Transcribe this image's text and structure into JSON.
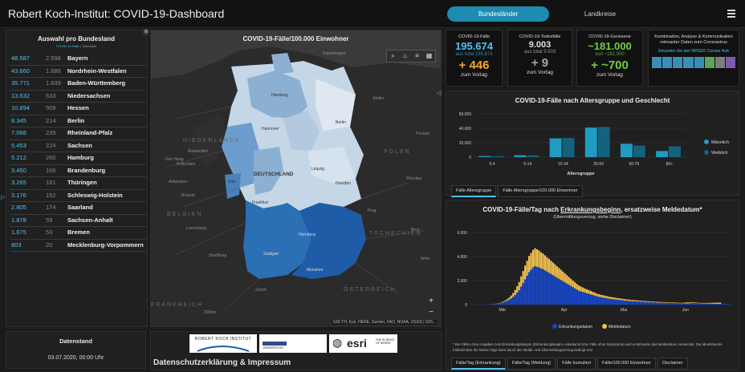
{
  "header": {
    "title": "Robert Koch-Institut: COVID-19-Dashboard",
    "tab_active": "Bundesländer",
    "tab_inactive": "Landkreise"
  },
  "state_list": {
    "title": "Auswahl pro Bundesland",
    "subtitle_cases": "COVID-19-Fälle",
    "subtitle_deaths": "Todesfälle",
    "rows": [
      {
        "cases": "48.587",
        "deaths": "2.598",
        "state": "Bayern"
      },
      {
        "cases": "43.660",
        "deaths": "1.686",
        "state": "Nordrhein-Westfalen"
      },
      {
        "cases": "35.771",
        "deaths": "1.839",
        "state": "Baden-Württemberg"
      },
      {
        "cases": "13.632",
        "deaths": "633",
        "state": "Niedersachsen"
      },
      {
        "cases": "10.894",
        "deaths": "509",
        "state": "Hessen"
      },
      {
        "cases": "8.345",
        "deaths": "214",
        "state": "Berlin"
      },
      {
        "cases": "7.068",
        "deaths": "235",
        "state": "Rheinland-Pfalz"
      },
      {
        "cases": "5.453",
        "deaths": "224",
        "state": "Sachsen"
      },
      {
        "cases": "5.212",
        "deaths": "260",
        "state": "Hamburg"
      },
      {
        "cases": "3.450",
        "deaths": "166",
        "state": "Brandenburg"
      },
      {
        "cases": "3.265",
        "deaths": "181",
        "state": "Thüringen"
      },
      {
        "cases": "3.176",
        "deaths": "152",
        "state": "Schleswig-Holstein"
      },
      {
        "cases": "2.805",
        "deaths": "174",
        "state": "Saarland"
      },
      {
        "cases": "1.878",
        "deaths": "59",
        "state": "Sachsen-Anhalt"
      },
      {
        "cases": "1.675",
        "deaths": "53",
        "state": "Bremen"
      },
      {
        "cases": "803",
        "deaths": "20",
        "state": "Mecklenburg-Vorpommern"
      }
    ]
  },
  "map": {
    "title": "COVID-19-Fälle/100.000 Einwohner",
    "attribution": "GDI-TH, Esri, HERE, Garmin, FAO, NOAA, USGS | GDI...",
    "country_label": "DEUTSCHLAND",
    "scale": "200km",
    "cities": {
      "kopenhagen": "Kopenhagen",
      "hamburg": "Hamburg",
      "berlin": "Berlin",
      "hannover": "Hannover",
      "amsterdam": "Amsterdam",
      "rotterdam": "Rotterdam",
      "den_haag": "Den Haag",
      "antwerpen": "Antwerpen",
      "bruessel": "Brüssel",
      "koeln": "Köln",
      "leipzig": "Leipzig",
      "dresden": "Dresden",
      "frankfurt": "Frankfurt",
      "stuttgart": "Stuttgart",
      "nuernberg": "Nürnberg",
      "muenchen": "München",
      "zuerich": "Zürich",
      "prag": "Prag",
      "wien": "Wien",
      "stettin": "Stettin",
      "poznan": "Poznań",
      "wroclaw": "Wrocław",
      "brno": "Brno",
      "luxemburg": "Luxemburg",
      "strassburg": "Straßburg"
    },
    "regions": {
      "niederlande": "NIEDERLANDE",
      "belgien": "BELGIEN",
      "polen": "POLEN",
      "tschechien": "TSCHECHIEN",
      "frankreich": "FRANKREICH",
      "oesterreich": "ÖSTERREICH"
    }
  },
  "stats": {
    "cases": {
      "label": "COVID-19-Fälle",
      "value": "195.674",
      "total": "aus total 195.674",
      "delta": "+ 446",
      "delta_label": "zum Vortag"
    },
    "deaths": {
      "label": "COVID-19-Todesfälle",
      "value": "9.003",
      "total": "aus total 9.003",
      "delta": "+ 9",
      "delta_label": "zum Vortag"
    },
    "recovered": {
      "label": "COVID-19-Genesene",
      "value": "~181.000",
      "total": "von ~181.000",
      "delta": "+ ~700",
      "delta_label": "zum Vortag"
    }
  },
  "info": {
    "text": "Kombination, Analyse & Kommunikation relevanter Daten zum Coronavirus",
    "link": "Erkunden Sie den NPGEO Corona Hub"
  },
  "age_panel": {
    "tabs": [
      "Fälle Altersgruppe",
      "Fälle Altersgruppe/100.000 Einwohner"
    ]
  },
  "daily_panel": {
    "subtitle": "(Übermittlungsverzug, siehe Disclaimer)",
    "note": "* Bei Fällen ohne Angaben zum Erkrankungsbeginn (Erkrankungsbeginn unbekannt bzw. Fälle ohne Symptome) wird ersatzweise das Meldedatum verwendet. Die abnehmende Fallzahl über die letzten Tage kann durch den Melde- und Übermittlungsverzug bedingt sein.",
    "tabs": [
      "Fälle/Tag (Erkrankung)",
      "Fälle/Tag (Meldung)",
      "Fälle kumuliert",
      "Fälle/100.000 Einwohner",
      "Disclaimer"
    ]
  },
  "datenstand": {
    "label": "Datenstand",
    "value": "03.07.2020, 00:00 Uhr"
  },
  "footer": {
    "imprint": "Datenschutzerklärung & Impressum",
    "logo_rki": "ROBERT KOCH INSTITUT",
    "logo_uni": "UNIVERSITÄT",
    "logo_esri": "esri",
    "logo_esri_tag": "THE SCIENCE OF WHERE"
  },
  "chart_data": [
    {
      "type": "bar",
      "title": "COVID-19-Fälle nach Altersgruppe und Geschlecht",
      "xlabel": "Altersgruppe",
      "ylabel": "",
      "categories": [
        "0-4",
        "5-14",
        "15-34",
        "35-59",
        "60-79",
        "80+"
      ],
      "series": [
        {
          "name": "Männlich",
          "values": [
            1500,
            2600,
            26000,
            41000,
            18500,
            8500
          ],
          "color": "#1f9bc4"
        },
        {
          "name": "Weiblich",
          "values": [
            1300,
            2400,
            26500,
            42000,
            16000,
            15000
          ],
          "color": "#15627f"
        }
      ],
      "ylim": [
        0,
        60000
      ],
      "yticks": [
        {
          "v": 0,
          "label": "0"
        },
        {
          "v": 20000,
          "label": "20.000"
        },
        {
          "v": 40000,
          "label": "40.000"
        },
        {
          "v": 60000,
          "label": "60.000"
        }
      ],
      "legend": "right"
    },
    {
      "type": "bar",
      "stacked": true,
      "title_prefix": "COVID-19-Fälle/Tag nach ",
      "title_emph": "Erkrankungsbeginn",
      "title_suffix": ", ersatzweise Meldedatum*",
      "xlabels": [
        {
          "i": 12,
          "label": "Mär"
        },
        {
          "i": 43,
          "label": "Apr"
        },
        {
          "i": 73,
          "label": "Mai"
        },
        {
          "i": 104,
          "label": "Jun"
        }
      ],
      "ylim": [
        0,
        6000
      ],
      "yticks": [
        {
          "v": 0,
          "label": "0"
        },
        {
          "v": 2000,
          "label": "2.000"
        },
        {
          "v": 4000,
          "label": "4.000"
        },
        {
          "v": 6000,
          "label": "6.000"
        }
      ],
      "series": [
        {
          "name": "Erkrankungsdatum",
          "color": "#1747c9",
          "values": [
            5,
            5,
            10,
            10,
            15,
            20,
            30,
            40,
            60,
            80,
            110,
            150,
            200,
            260,
            330,
            420,
            520,
            650,
            800,
            1000,
            1200,
            1500,
            1800,
            2100,
            2400,
            2700,
            2900,
            3100,
            3200,
            3150,
            3100,
            3000,
            2950,
            2850,
            2750,
            2650,
            2550,
            2450,
            2350,
            2250,
            2150,
            2050,
            1950,
            1850,
            1750,
            1650,
            1550,
            1450,
            1350,
            1250,
            1150,
            1100,
            1050,
            1000,
            950,
            900,
            850,
            800,
            750,
            700,
            650,
            620,
            590,
            560,
            530,
            500,
            480,
            460,
            440,
            420,
            400,
            380,
            360,
            340,
            320,
            310,
            300,
            290,
            280,
            270,
            260,
            250,
            240,
            230,
            220,
            210,
            200,
            190,
            180,
            175,
            170,
            165,
            160,
            155,
            150,
            145,
            140,
            135,
            130,
            125,
            120,
            115,
            110,
            105,
            100,
            100,
            120,
            150,
            140,
            130,
            120,
            110,
            100,
            95,
            90,
            85,
            80,
            75,
            70,
            65,
            60,
            55,
            50,
            45,
            40,
            35,
            30
          ]
        },
        {
          "name": "Meldedatum",
          "color": "#f5c24c",
          "values": [
            0,
            0,
            0,
            0,
            0,
            5,
            5,
            10,
            15,
            20,
            30,
            40,
            60,
            90,
            130,
            180,
            240,
            320,
            420,
            540,
            680,
            850,
            1000,
            1150,
            1250,
            1350,
            1400,
            1450,
            1500,
            1450,
            1400,
            1350,
            1300,
            1250,
            1200,
            1150,
            1100,
            1050,
            1000,
            950,
            900,
            850,
            800,
            750,
            700,
            650,
            600,
            560,
            520,
            480,
            440,
            410,
            380,
            350,
            330,
            310,
            290,
            270,
            250,
            230,
            220,
            210,
            200,
            190,
            180,
            170,
            160,
            150,
            145,
            140,
            135,
            130,
            125,
            120,
            115,
            110,
            105,
            100,
            95,
            90,
            85,
            80,
            78,
            76,
            74,
            72,
            70,
            68,
            66,
            64,
            62,
            60,
            58,
            56,
            54,
            52,
            50,
            48,
            46,
            44,
            42,
            40,
            40,
            60,
            90,
            80,
            70,
            60,
            50,
            45,
            40,
            40,
            45,
            50,
            55,
            60,
            70,
            80,
            90,
            100,
            110,
            120
          ]
        }
      ],
      "legend": "bottom"
    }
  ]
}
